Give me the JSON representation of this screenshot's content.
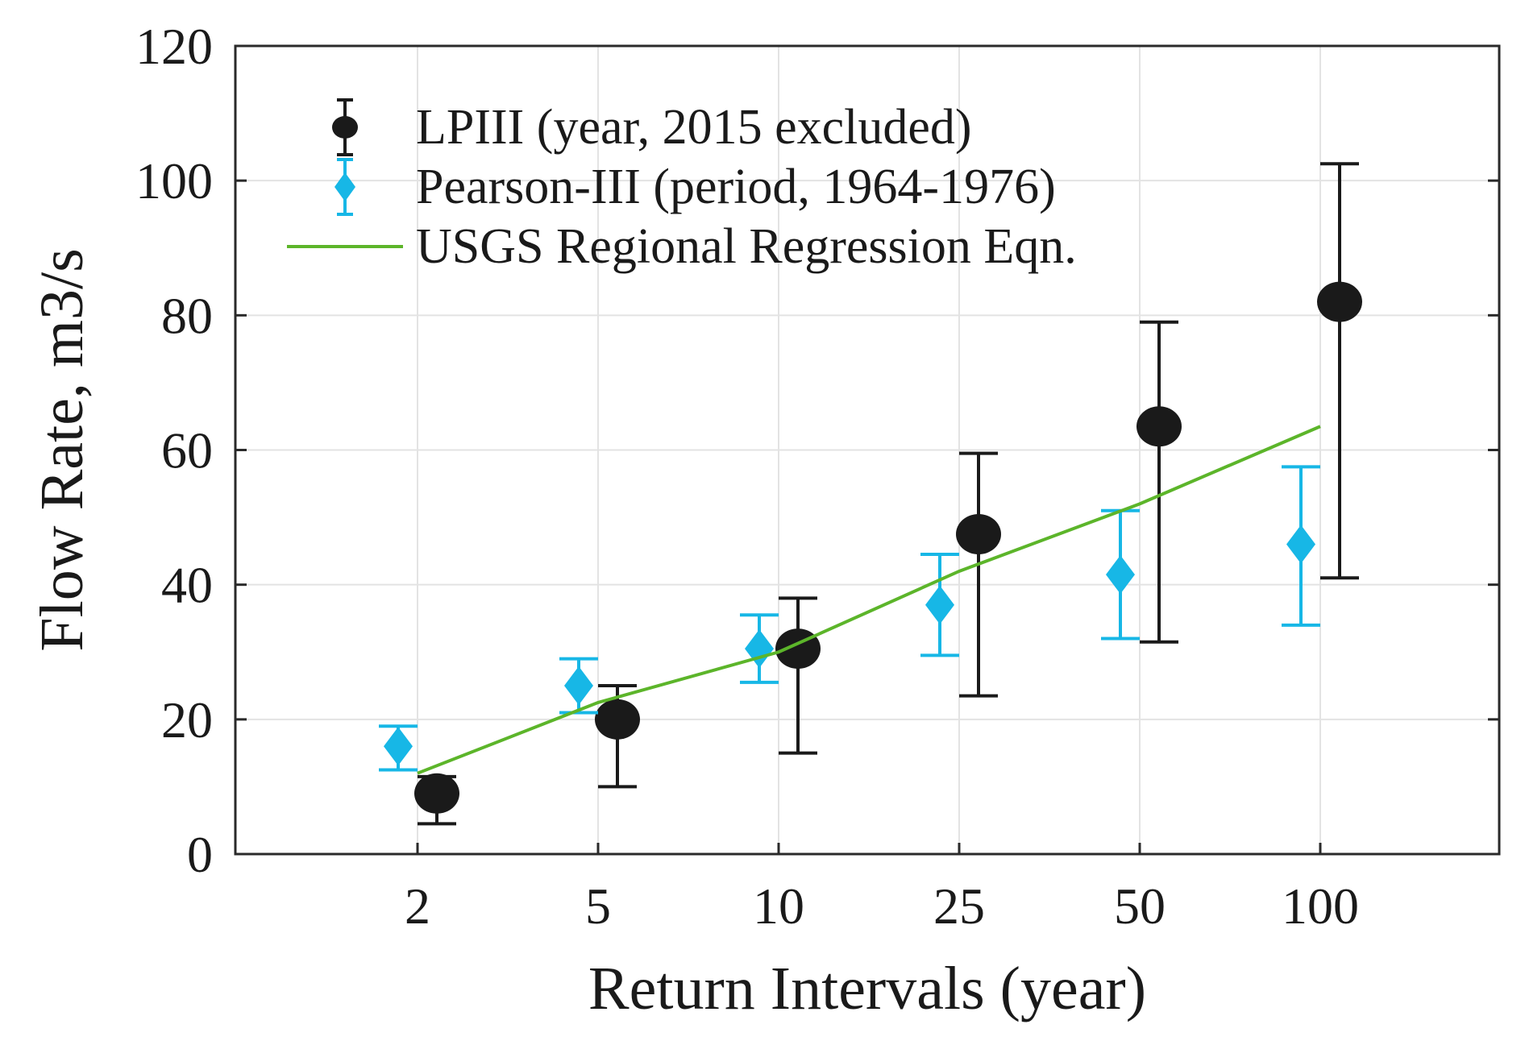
{
  "chart_data": {
    "type": "scatter",
    "xlabel": "Return Intervals (year)",
    "ylabel": "Flow Rate, m3/s",
    "categories": [
      "2",
      "5",
      "10",
      "25",
      "50",
      "100"
    ],
    "ylim": [
      0,
      120
    ],
    "yticks": [
      "0",
      "20",
      "40",
      "60",
      "80",
      "100",
      "120"
    ],
    "grid": true,
    "legend_position": "top-left",
    "series": [
      {
        "name": "LPIII (year, 2015 excluded)",
        "marker": "circle",
        "color": "#1a1a1a",
        "values": [
          9,
          20,
          30.5,
          47.5,
          63.5,
          82
        ],
        "lower": [
          4.5,
          10,
          15,
          23.5,
          31.5,
          41
        ],
        "upper": [
          11.5,
          25,
          38,
          59.5,
          79,
          102.5
        ]
      },
      {
        "name": "Pearson-III (period, 1964-1976)",
        "marker": "diamond",
        "color": "#17b7e6",
        "values": [
          16,
          25,
          30.5,
          37,
          41.5,
          46
        ],
        "lower": [
          12.5,
          21,
          25.5,
          29.5,
          32,
          34
        ],
        "upper": [
          19,
          29,
          35.5,
          44.5,
          51,
          57.5
        ]
      },
      {
        "name": "USGS Regional Regression Eqn.",
        "marker": "line",
        "color": "#5cb52a",
        "values": [
          12,
          22.5,
          30,
          42,
          52,
          63.5
        ]
      }
    ]
  }
}
